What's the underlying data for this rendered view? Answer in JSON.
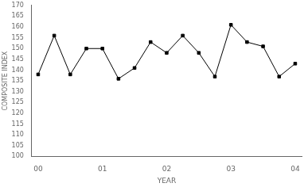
{
  "chart_data": {
    "type": "line",
    "x": [
      0.0,
      0.25,
      0.5,
      0.75,
      1.0,
      1.25,
      1.5,
      1.75,
      2.0,
      2.25,
      2.5,
      2.75,
      3.0,
      3.25,
      3.5,
      3.75,
      4.0
    ],
    "values": [
      138,
      156,
      138,
      150,
      150,
      136,
      141,
      153,
      148,
      156,
      148,
      137,
      161,
      153,
      151,
      137,
      143
    ],
    "color": "#000000",
    "marker": "square",
    "xlim": [
      -0.1,
      4.1
    ],
    "xticks": [
      {
        "value": 0,
        "label": "00"
      },
      {
        "value": 1,
        "label": "01"
      },
      {
        "value": 2,
        "label": "02"
      },
      {
        "value": 3,
        "label": "03"
      },
      {
        "value": 4,
        "label": "04"
      }
    ],
    "ylim": [
      100,
      170
    ],
    "yticks": [
      100,
      105,
      110,
      115,
      120,
      125,
      130,
      135,
      140,
      145,
      150,
      155,
      160,
      165,
      170
    ],
    "xlabel": "YEAR",
    "ylabel": "COMPOSITE INDEX",
    "grid": false
  }
}
